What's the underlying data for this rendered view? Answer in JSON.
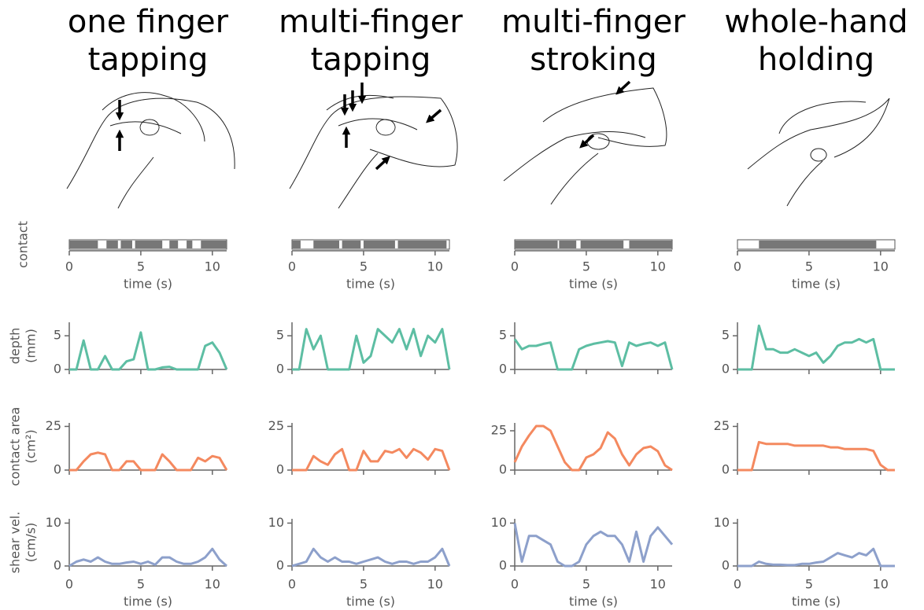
{
  "chart_data": [
    {
      "type": "raster",
      "title": [
        "one finger",
        "tapping"
      ],
      "ylabel": [
        "contact"
      ],
      "xlabel": "time (s)",
      "xlim": [
        0,
        11
      ],
      "xticks": [
        0,
        5,
        10
      ],
      "color": "#777777",
      "intervals": [
        [
          0,
          2.0
        ],
        [
          2.6,
          3.4
        ],
        [
          3.6,
          4.4
        ],
        [
          4.6,
          6.5
        ],
        [
          7.0,
          7.6
        ],
        [
          8.2,
          8.6
        ],
        [
          9.2,
          11
        ]
      ]
    },
    {
      "type": "line",
      "ylabel": [
        "depth",
        "(mm)"
      ],
      "xlim": [
        0,
        11
      ],
      "xticks": [
        0,
        5,
        10
      ],
      "show_xtick_labels": false,
      "ylim": [
        0,
        7
      ],
      "yticks": [
        0,
        5
      ],
      "color": "#5dbea3",
      "x": [
        0,
        0.5,
        1,
        1.5,
        2,
        2.5,
        3,
        3.5,
        4,
        4.5,
        5,
        5.5,
        6,
        6.5,
        7,
        7.5,
        8,
        8.5,
        9,
        9.5,
        10,
        10.5,
        11
      ],
      "values": [
        0,
        0,
        4.3,
        0,
        0,
        2,
        0,
        0,
        1.2,
        1.5,
        5.5,
        0,
        0,
        0.3,
        0.4,
        0,
        0,
        0,
        0,
        3.5,
        4,
        2.5,
        0
      ]
    },
    {
      "type": "line",
      "ylabel": [
        "contact area",
        "(cm²)"
      ],
      "xlim": [
        0,
        11
      ],
      "xticks": [
        0,
        5,
        10
      ],
      "show_xtick_labels": false,
      "ylim": [
        0,
        27
      ],
      "yticks": [
        0,
        25
      ],
      "color": "#f4895f",
      "x": [
        0,
        0.5,
        1,
        1.5,
        2,
        2.5,
        3,
        3.5,
        4,
        4.5,
        5,
        5.5,
        6,
        6.5,
        7,
        7.5,
        8,
        8.5,
        9,
        9.5,
        10,
        10.5,
        11
      ],
      "values": [
        0,
        0,
        5,
        9,
        10,
        9,
        0,
        0,
        5,
        5,
        0,
        0,
        0,
        9,
        5,
        0,
        0,
        0,
        7,
        5,
        8,
        7,
        0
      ]
    },
    {
      "type": "line",
      "ylabel": [
        "shear vel.",
        "(cm/s)"
      ],
      "xlabel": "time (s)",
      "xlim": [
        0,
        11
      ],
      "xticks": [
        0,
        5,
        10
      ],
      "show_xtick_labels": true,
      "ylim": [
        0,
        11
      ],
      "yticks": [
        0,
        10
      ],
      "color": "#8da0cb",
      "x": [
        0,
        0.5,
        1,
        1.5,
        2,
        2.5,
        3,
        3.5,
        4,
        4.5,
        5,
        5.5,
        6,
        6.5,
        7,
        7.5,
        8,
        8.5,
        9,
        9.5,
        10,
        10.5,
        11
      ],
      "values": [
        0,
        1,
        1.5,
        1,
        2,
        1,
        0.5,
        0.5,
        0.8,
        1,
        0.5,
        1,
        0.3,
        2,
        2,
        1,
        0.5,
        0.5,
        1,
        2,
        4,
        1.5,
        0
      ]
    },
    {
      "type": "raster",
      "title": [
        "multi-finger",
        "tapping"
      ],
      "xlabel": "time (s)",
      "xlim": [
        0,
        11
      ],
      "xticks": [
        0,
        5,
        10
      ],
      "color": "#777777",
      "intervals": [
        [
          0,
          0.6
        ],
        [
          1.5,
          3.3
        ],
        [
          3.5,
          4.8
        ],
        [
          5.0,
          7.2
        ],
        [
          7.4,
          10.8
        ]
      ]
    },
    {
      "type": "line",
      "xlim": [
        0,
        11
      ],
      "xticks": [
        0,
        5,
        10
      ],
      "show_xtick_labels": false,
      "ylim": [
        0,
        7
      ],
      "yticks": [
        0,
        5
      ],
      "color": "#5dbea3",
      "x": [
        0,
        0.5,
        1,
        1.5,
        2,
        2.5,
        3,
        3.5,
        4,
        4.5,
        5,
        5.5,
        6,
        6.5,
        7,
        7.5,
        8,
        8.5,
        9,
        9.5,
        10,
        10.5,
        11
      ],
      "values": [
        0,
        0,
        6,
        3,
        5,
        0,
        0,
        0,
        0,
        5,
        1,
        2,
        6,
        5,
        4,
        6,
        3,
        6,
        2,
        5,
        4,
        6,
        0
      ]
    },
    {
      "type": "line",
      "xlim": [
        0,
        11
      ],
      "xticks": [
        0,
        5,
        10
      ],
      "show_xtick_labels": false,
      "ylim": [
        0,
        27
      ],
      "yticks": [
        0,
        25
      ],
      "color": "#f4895f",
      "x": [
        0,
        0.5,
        1,
        1.5,
        2,
        2.5,
        3,
        3.5,
        4,
        4.5,
        5,
        5.5,
        6,
        6.5,
        7,
        7.5,
        8,
        8.5,
        9,
        9.5,
        10,
        10.5,
        11
      ],
      "values": [
        0,
        0,
        0,
        8,
        5,
        3,
        9,
        12,
        0,
        0,
        11,
        5,
        5,
        11,
        10,
        12,
        7,
        12,
        10,
        6,
        12,
        11,
        0
      ]
    },
    {
      "type": "line",
      "xlabel": "time (s)",
      "xlim": [
        0,
        11
      ],
      "xticks": [
        0,
        5,
        10
      ],
      "show_xtick_labels": true,
      "ylim": [
        0,
        11
      ],
      "yticks": [
        0,
        10
      ],
      "color": "#8da0cb",
      "x": [
        0,
        0.5,
        1,
        1.5,
        2,
        2.5,
        3,
        3.5,
        4,
        4.5,
        5,
        5.5,
        6,
        6.5,
        7,
        7.5,
        8,
        8.5,
        9,
        9.5,
        10,
        10.5,
        11
      ],
      "values": [
        0,
        0.5,
        1,
        4,
        2,
        1,
        2,
        1,
        1,
        0.5,
        1,
        1.5,
        2,
        1,
        0.5,
        1,
        1,
        0.5,
        1,
        1,
        2,
        4,
        0
      ]
    },
    {
      "type": "raster",
      "title": [
        "multi-finger",
        "stroking"
      ],
      "xlabel": "time (s)",
      "xlim": [
        0,
        11
      ],
      "xticks": [
        0,
        5,
        10
      ],
      "color": "#777777",
      "intervals": [
        [
          0,
          3.0
        ],
        [
          3.1,
          4.3
        ],
        [
          4.6,
          7.6
        ],
        [
          8.0,
          11
        ]
      ]
    },
    {
      "type": "line",
      "xlim": [
        0,
        11
      ],
      "xticks": [
        0,
        5,
        10
      ],
      "show_xtick_labels": false,
      "ylim": [
        0,
        7
      ],
      "yticks": [
        0,
        5
      ],
      "color": "#5dbea3",
      "x": [
        0,
        0.5,
        1,
        1.5,
        2,
        2.5,
        3,
        3.5,
        4,
        4.5,
        5,
        5.5,
        6,
        6.5,
        7,
        7.5,
        8,
        8.5,
        9,
        9.5,
        10,
        10.5,
        11
      ],
      "values": [
        4.5,
        3,
        3.5,
        3.5,
        3.8,
        4,
        0,
        0,
        0,
        3,
        3.5,
        3.8,
        4,
        4.2,
        4,
        0.5,
        4,
        3.5,
        3.8,
        4,
        3.5,
        4,
        0
      ]
    },
    {
      "type": "line",
      "xlim": [
        0,
        11
      ],
      "xticks": [
        0,
        5,
        10
      ],
      "show_xtick_labels": false,
      "ylim": [
        0,
        30
      ],
      "yticks": [
        0,
        25
      ],
      "color": "#f4895f",
      "x": [
        0,
        0.5,
        1,
        1.5,
        2,
        2.5,
        3,
        3.5,
        4,
        4.5,
        5,
        5.5,
        6,
        6.5,
        7,
        7.5,
        8,
        8.5,
        9,
        9.5,
        10,
        10.5,
        11
      ],
      "values": [
        5,
        15,
        22,
        28,
        28,
        25,
        15,
        5,
        0,
        0,
        8,
        10,
        14,
        24,
        20,
        10,
        3,
        10,
        14,
        15,
        12,
        3,
        0
      ]
    },
    {
      "type": "line",
      "xlabel": "time (s)",
      "xlim": [
        0,
        11
      ],
      "xticks": [
        0,
        5,
        10
      ],
      "show_xtick_labels": true,
      "ylim": [
        0,
        11
      ],
      "yticks": [
        0,
        10
      ],
      "color": "#8da0cb",
      "x": [
        0,
        0.5,
        1,
        1.5,
        2,
        2.5,
        3,
        3.5,
        4,
        4.5,
        5,
        5.5,
        6,
        6.5,
        7,
        7.5,
        8,
        8.5,
        9,
        9.5,
        10,
        10.5,
        11
      ],
      "values": [
        10,
        1,
        7,
        7,
        6,
        5,
        1,
        0,
        0,
        1,
        5,
        7,
        8,
        7,
        7,
        5,
        1,
        8,
        1,
        7,
        9,
        7,
        5
      ]
    },
    {
      "type": "raster",
      "title": [
        "whole-hand",
        "holding"
      ],
      "xlabel": "time (s)",
      "xlim": [
        0,
        11
      ],
      "xticks": [
        0,
        5,
        10
      ],
      "color": "#777777",
      "intervals": [
        [
          1.5,
          9.7
        ]
      ]
    },
    {
      "type": "line",
      "xlim": [
        0,
        11
      ],
      "xticks": [
        0,
        5,
        10
      ],
      "show_xtick_labels": false,
      "ylim": [
        0,
        7
      ],
      "yticks": [
        0,
        5
      ],
      "color": "#5dbea3",
      "x": [
        0,
        0.5,
        1,
        1.5,
        2,
        2.5,
        3,
        3.5,
        4,
        4.5,
        5,
        5.5,
        6,
        6.5,
        7,
        7.5,
        8,
        8.5,
        9,
        9.5,
        10,
        10.5,
        11
      ],
      "values": [
        0,
        0,
        0,
        6.5,
        3,
        3,
        2.5,
        2.5,
        3,
        2.5,
        2,
        2.5,
        1,
        2,
        3.5,
        4,
        4,
        4.5,
        4,
        4.5,
        0,
        0,
        0
      ]
    },
    {
      "type": "line",
      "xlim": [
        0,
        11
      ],
      "xticks": [
        0,
        5,
        10
      ],
      "show_xtick_labels": false,
      "ylim": [
        0,
        27
      ],
      "yticks": [
        0,
        25
      ],
      "color": "#f4895f",
      "x": [
        0,
        0.5,
        1,
        1.5,
        2,
        2.5,
        3,
        3.5,
        4,
        4.5,
        5,
        5.5,
        6,
        6.5,
        7,
        7.5,
        8,
        8.5,
        9,
        9.5,
        10,
        10.5,
        11
      ],
      "values": [
        0,
        0,
        0,
        16,
        15,
        15,
        15,
        15,
        14,
        14,
        14,
        14,
        14,
        13,
        13,
        12,
        12,
        12,
        12,
        11,
        3,
        0,
        0
      ]
    },
    {
      "type": "line",
      "xlabel": "time (s)",
      "xlim": [
        0,
        11
      ],
      "xticks": [
        0,
        5,
        10
      ],
      "show_xtick_labels": true,
      "ylim": [
        0,
        11
      ],
      "yticks": [
        0,
        10
      ],
      "color": "#8da0cb",
      "x": [
        0,
        0.5,
        1,
        1.5,
        2,
        2.5,
        3,
        3.5,
        4,
        4.5,
        5,
        5.5,
        6,
        6.5,
        7,
        7.5,
        8,
        8.5,
        9,
        9.5,
        10,
        10.5,
        11
      ],
      "values": [
        0,
        0,
        0,
        1,
        0.5,
        0.3,
        0.3,
        0.2,
        0.2,
        0.5,
        0.5,
        0.8,
        1,
        2,
        3,
        2.5,
        2,
        3,
        2.5,
        4,
        0,
        0,
        0
      ]
    }
  ]
}
